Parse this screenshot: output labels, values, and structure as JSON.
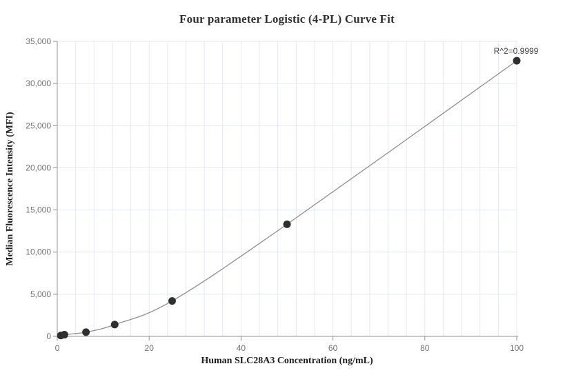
{
  "chart_data": {
    "type": "scatter",
    "title": "Four parameter Logistic (4-PL) Curve Fit",
    "xlabel": "Human SLC28A3 Concentration (ng/mL)",
    "ylabel": "Median Fluorescence Intensity (MFI)",
    "annotation": "R^2=0.9999",
    "x": [
      0.78,
      1.56,
      6.25,
      12.5,
      25,
      50,
      100
    ],
    "y": [
      100,
      200,
      500,
      1400,
      4200,
      13300,
      32700
    ],
    "series_marker": "filled-circle",
    "fit_line": {
      "type": "4PL",
      "draw_from_x": 0,
      "y_at_x0": 30
    },
    "xlim": [
      0,
      100
    ],
    "ylim": [
      0,
      35000
    ],
    "x_major_ticks": [
      0,
      20,
      40,
      60,
      80,
      100
    ],
    "x_tick_labels": [
      "0",
      "20",
      "40",
      "60",
      "80",
      "100"
    ],
    "x_minor_grid_step": 4,
    "y_major_ticks": [
      0,
      5000,
      10000,
      15000,
      20000,
      25000,
      30000,
      35000
    ],
    "y_tick_labels": [
      "0",
      "5,000",
      "10,000",
      "15,000",
      "20,000",
      "25,000",
      "30,000",
      "35,000"
    ],
    "grid": true,
    "legend": false
  },
  "colors": {
    "background": "#ffffff",
    "gridline": "#e4e9f3",
    "axis_line": "#8d9095",
    "tick_text": "#6e7176",
    "title_text": "#303030",
    "curve": "#8f8f8f",
    "point": "#2f2f2f",
    "annotation_text": "#3f3f3f"
  }
}
